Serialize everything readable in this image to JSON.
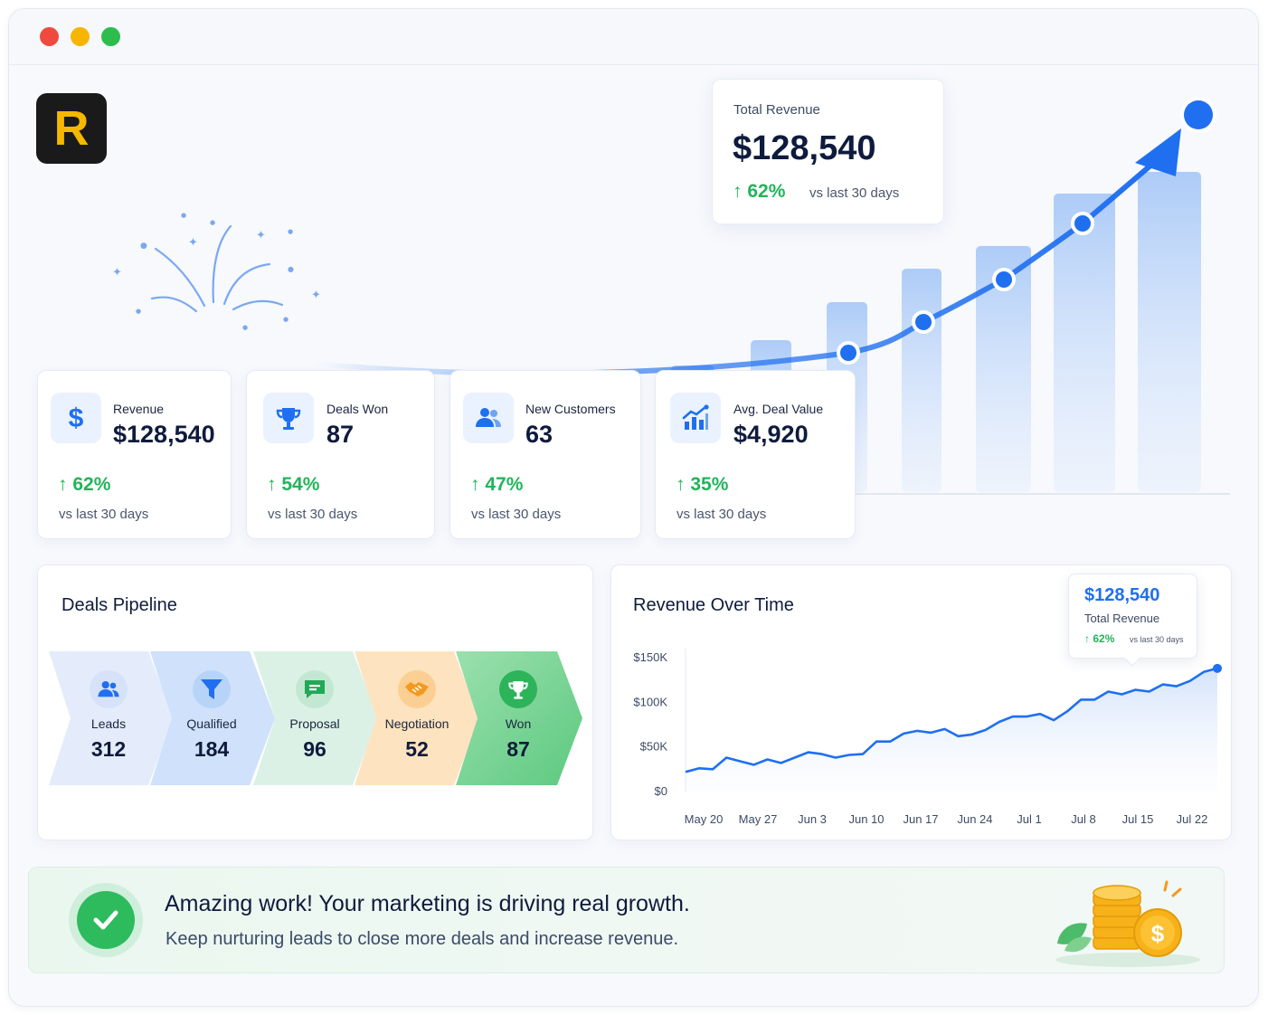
{
  "app": {
    "logo_letter": "R"
  },
  "colors": {
    "accent": "#1f6ff0",
    "positive": "#22b45a",
    "logo_bg": "#1a1a1a",
    "logo_fg": "#f5b800"
  },
  "hero": {
    "card": {
      "label": "Total Revenue",
      "value": "$128,540",
      "change": "62%",
      "compare": "vs last 30 days"
    }
  },
  "kpis": [
    {
      "icon": "dollar-icon",
      "label": "Revenue",
      "value": "$128,540",
      "change": "62%",
      "compare": "vs last 30 days"
    },
    {
      "icon": "trophy-icon",
      "label": "Deals Won",
      "value": "87",
      "change": "54%",
      "compare": "vs last 30 days"
    },
    {
      "icon": "users-icon",
      "label": "New Customers",
      "value": "63",
      "change": "47%",
      "compare": "vs last 30 days"
    },
    {
      "icon": "growth-chart-icon",
      "label": "Avg. Deal Value",
      "value": "$4,920",
      "change": "35%",
      "compare": "vs last 30 days"
    }
  ],
  "pipeline": {
    "title": "Deals Pipeline",
    "stages": [
      {
        "icon": "users-icon",
        "label": "Leads",
        "value": "312",
        "color": "#e4ecfb"
      },
      {
        "icon": "funnel-icon",
        "label": "Qualified",
        "value": "184",
        "color": "#cfe1fb"
      },
      {
        "icon": "chat-icon",
        "label": "Proposal",
        "value": "96",
        "color": "#dcf1e6"
      },
      {
        "icon": "handshake-icon",
        "label": "Negotiation",
        "value": "52",
        "color": "#fde3bf"
      },
      {
        "icon": "trophy-icon",
        "label": "Won",
        "value": "87",
        "color": "#7fd69a"
      }
    ]
  },
  "revenue_chart": {
    "title": "Revenue Over Time",
    "tooltip": {
      "value": "$128,540",
      "label": "Total Revenue",
      "change": "62%",
      "compare": "vs last 30 days"
    }
  },
  "chart_data": {
    "type": "area",
    "title": "Revenue Over Time",
    "xlabel": "",
    "ylabel": "",
    "x_ticks": [
      "May 20",
      "May 27",
      "Jun 3",
      "Jun 10",
      "Jun 17",
      "Jun 24",
      "Jul 1",
      "Jul 8",
      "Jul 15",
      "Jul 22"
    ],
    "y_ticks": [
      "$0",
      "$50K",
      "$100K",
      "$150K"
    ],
    "ylim": [
      0,
      150000
    ],
    "grid": false,
    "series": [
      {
        "values": [
          22000,
          26000,
          25000,
          38000,
          34000,
          30000,
          36000,
          32000,
          38000,
          44000,
          42000,
          38000,
          41000,
          42000,
          56000,
          56000,
          65000,
          68000,
          66000,
          70000,
          62000,
          64000,
          69000,
          78000,
          84000,
          84000,
          87000,
          80000,
          90000,
          103000,
          103000,
          112000,
          109000,
          114000,
          112000,
          120000,
          118000,
          124000,
          134000,
          138000
        ]
      }
    ]
  },
  "banner": {
    "headline": "Amazing work! Your marketing is driving real growth.",
    "subtext": "Keep nurturing leads to close more deals and increase revenue."
  }
}
